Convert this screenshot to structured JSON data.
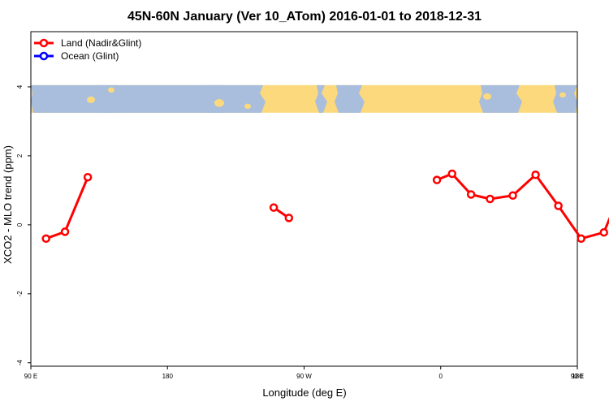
{
  "chart_data": {
    "type": "line",
    "title": "45N-60N January (Ver 10_ATom)   2016-01-01 to 2018-12-31",
    "xlabel": "Longitude (deg E)",
    "ylabel": "XCO2 - MLO trend (ppm)",
    "xlim": [
      90,
      450
    ],
    "ylim": [
      -4.1,
      5.6
    ],
    "x_ticks": [
      {
        "value": 90,
        "label": "90 E"
      },
      {
        "value": 180,
        "label": "180"
      },
      {
        "value": 270,
        "label": "90 W"
      },
      {
        "value": 360,
        "label": "0"
      },
      {
        "value": 450,
        "label": "90 E"
      },
      {
        "value": 540,
        "label": "180"
      }
    ],
    "y_ticks": [
      {
        "value": -4,
        "label": "-4"
      },
      {
        "value": -2,
        "label": "-2"
      },
      {
        "value": 0,
        "label": "0"
      },
      {
        "value": 2,
        "label": "2"
      },
      {
        "value": 4,
        "label": "4"
      }
    ],
    "map_band": {
      "y_from": 3.25,
      "y_to": 4.05,
      "land_color": "#fcd97d",
      "ocean_color": "#a8bedc"
    },
    "legend": {
      "position": "top-left"
    },
    "series": [
      {
        "name": "Land (Nadir&Glint)",
        "color": "#ff0000",
        "segments": [
          [
            [
              100,
              -0.4
            ],
            [
              112.5,
              -0.2
            ],
            [
              127.5,
              1.38
            ]
          ],
          [
            [
              250,
              0.5
            ],
            [
              260,
              0.2
            ]
          ],
          [
            [
              357.5,
              1.3
            ],
            [
              367.5,
              1.48
            ],
            [
              380,
              0.88
            ],
            [
              392.5,
              0.75
            ],
            [
              407.5,
              0.85
            ],
            [
              422.5,
              1.45
            ],
            [
              437.5,
              0.55
            ],
            [
              452.5,
              -0.4
            ],
            [
              467.5,
              -0.22
            ],
            [
              482.5,
              1.38
            ]
          ]
        ]
      },
      {
        "name": "Ocean (Glint)",
        "color": "#0000ff",
        "segments": []
      }
    ]
  }
}
